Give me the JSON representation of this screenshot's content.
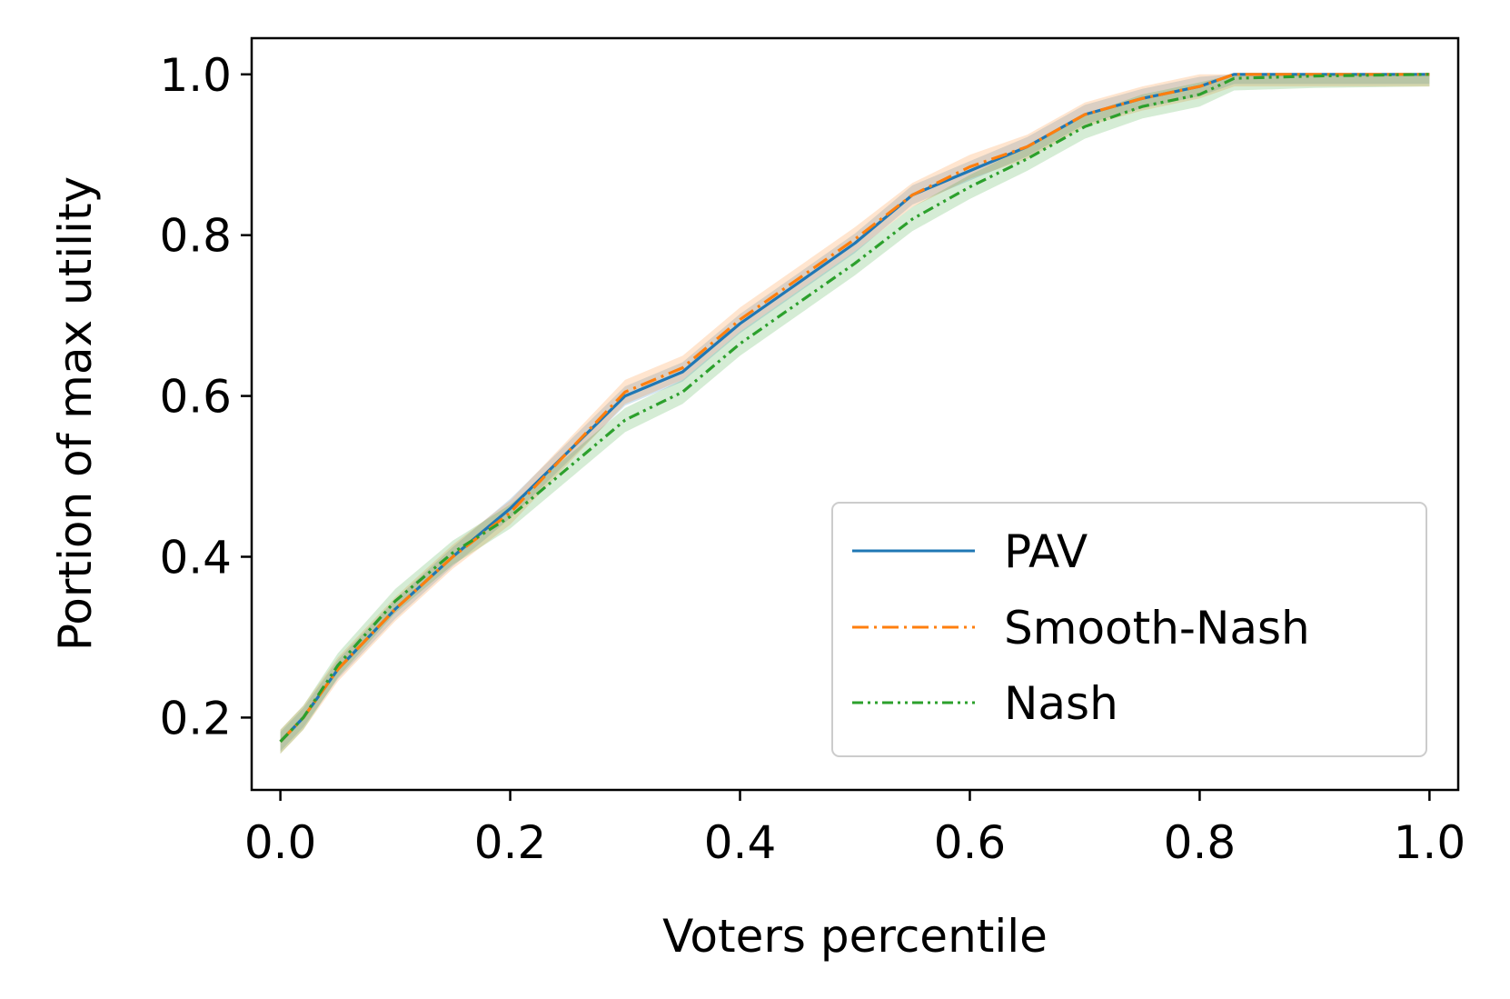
{
  "chart_data": {
    "type": "line",
    "title": "",
    "xlabel": "Voters percentile",
    "ylabel": "Portion of max utility",
    "xlim": [
      -0.025,
      1.025
    ],
    "ylim": [
      0.11,
      1.045
    ],
    "xticks": [
      0.0,
      0.2,
      0.4,
      0.6,
      0.8,
      1.0
    ],
    "xtick_labels": [
      "0.0",
      "0.2",
      "0.4",
      "0.6",
      "0.8",
      "1.0"
    ],
    "yticks": [
      0.2,
      0.4,
      0.6,
      0.8,
      1.0
    ],
    "ytick_labels": [
      "0.2",
      "0.4",
      "0.6",
      "0.8",
      "1.0"
    ],
    "grid": false,
    "legend_position": "lower-right",
    "series": [
      {
        "name": "PAV",
        "color": "#1f77b4",
        "linestyle": "solid",
        "band": 0.012,
        "x": [
          0.0,
          0.02,
          0.05,
          0.1,
          0.15,
          0.2,
          0.25,
          0.3,
          0.35,
          0.4,
          0.45,
          0.5,
          0.55,
          0.6,
          0.65,
          0.7,
          0.75,
          0.8,
          0.83,
          0.9,
          1.0
        ],
        "y": [
          0.17,
          0.2,
          0.26,
          0.335,
          0.4,
          0.46,
          0.53,
          0.6,
          0.63,
          0.69,
          0.74,
          0.79,
          0.85,
          0.88,
          0.91,
          0.95,
          0.97,
          0.985,
          1.0,
          1.0,
          1.0
        ]
      },
      {
        "name": "Smooth-Nash",
        "color": "#ff7f0e",
        "linestyle": "dashdot",
        "band": 0.015,
        "x": [
          0.0,
          0.02,
          0.05,
          0.1,
          0.15,
          0.2,
          0.25,
          0.3,
          0.35,
          0.4,
          0.45,
          0.5,
          0.55,
          0.6,
          0.65,
          0.7,
          0.75,
          0.8,
          0.83,
          0.9,
          1.0
        ],
        "y": [
          0.17,
          0.2,
          0.26,
          0.335,
          0.4,
          0.455,
          0.53,
          0.605,
          0.635,
          0.695,
          0.745,
          0.795,
          0.85,
          0.885,
          0.91,
          0.95,
          0.97,
          0.985,
          1.0,
          1.0,
          1.0
        ]
      },
      {
        "name": "Nash",
        "color": "#2ca02c",
        "linestyle": "dashdotdot",
        "band": 0.015,
        "x": [
          0.0,
          0.02,
          0.05,
          0.1,
          0.15,
          0.2,
          0.25,
          0.3,
          0.35,
          0.4,
          0.45,
          0.5,
          0.55,
          0.6,
          0.65,
          0.7,
          0.75,
          0.8,
          0.83,
          0.9,
          1.0
        ],
        "y": [
          0.17,
          0.2,
          0.265,
          0.345,
          0.405,
          0.45,
          0.51,
          0.57,
          0.605,
          0.665,
          0.715,
          0.765,
          0.82,
          0.86,
          0.895,
          0.935,
          0.96,
          0.975,
          0.995,
          0.998,
          1.0
        ]
      }
    ]
  }
}
